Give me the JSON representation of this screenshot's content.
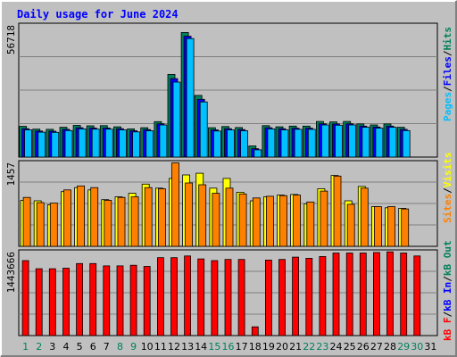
{
  "chart_data": {
    "type": "bar",
    "title": "Daily usage for June 2024",
    "categories": [
      "1",
      "2",
      "3",
      "4",
      "5",
      "6",
      "7",
      "8",
      "9",
      "10",
      "11",
      "12",
      "13",
      "14",
      "15",
      "16",
      "17",
      "18",
      "19",
      "20",
      "21",
      "22",
      "23",
      "24",
      "25",
      "26",
      "27",
      "28",
      "29",
      "30",
      "31"
    ],
    "weekend_days": [
      1,
      2,
      8,
      9,
      15,
      16,
      22,
      23,
      29,
      30
    ],
    "x_label_colors": {
      "weekday": "#000000",
      "weekend": "#00805c"
    },
    "background": "#c0c0c0",
    "panels": [
      {
        "name": "hits-files-pages",
        "y_max_label": "56718",
        "ylim": [
          0,
          56718
        ],
        "grid": true,
        "series": [
          {
            "name": "Hits",
            "color": "#00805c",
            "values": [
              13200,
              12000,
              11900,
              12800,
              13600,
              13400,
              13500,
              13000,
              12100,
              12600,
              15200,
              35500,
              53500,
              26500,
              12600,
              13100,
              12700,
              4800,
              13500,
              13000,
              13300,
              13300,
              15300,
              15100,
              15300,
              14200,
              13800,
              14200,
              12800,
              0,
              0
            ]
          },
          {
            "name": "Files",
            "color": "#0000ff",
            "values": [
              12200,
              11200,
              11100,
              11900,
              12600,
              12500,
              12500,
              12200,
              11300,
              11800,
              14300,
              33700,
              51900,
              24800,
              11700,
              12200,
              11800,
              3600,
              12600,
              12200,
              12400,
              12400,
              14300,
              14200,
              14300,
              13300,
              12900,
              13300,
              11900,
              0,
              0
            ]
          },
          {
            "name": "Pages",
            "color": "#00c0ff",
            "values": [
              11700,
              10700,
              10600,
              11400,
              12100,
              12000,
              12000,
              11700,
              10800,
              11300,
              13800,
              32200,
              50900,
              23700,
              11200,
              11700,
              11300,
              3100,
              12100,
              11700,
              11900,
              11900,
              13800,
              13700,
              13800,
              12800,
              12400,
              12800,
              11400,
              0,
              0
            ]
          }
        ]
      },
      {
        "name": "visits-sites",
        "y_max_label": "1457",
        "ylim": [
          0,
          1457
        ],
        "grid": true,
        "series": [
          {
            "name": "Visits",
            "color": "#ffff00",
            "values": [
              800,
              790,
              720,
              950,
              1020,
              980,
              810,
              860,
              920,
              1080,
              1010,
              1180,
              1240,
              1270,
              1010,
              1180,
              940,
              790,
              860,
              890,
              900,
              740,
              1000,
              1230,
              790,
              1040,
              690,
              670,
              660,
              0,
              0
            ]
          },
          {
            "name": "Sites",
            "color": "#ff8000",
            "values": [
              850,
              760,
              750,
              980,
              1050,
              1020,
              800,
              850,
              860,
              1020,
              1000,
              1450,
              1100,
              1070,
              920,
              1010,
              910,
              840,
              870,
              880,
              890,
              770,
              960,
              1220,
              730,
              1010,
              690,
              690,
              650,
              0,
              0
            ]
          }
        ]
      },
      {
        "name": "kbytes",
        "y_max_label": "1443666",
        "ylim": [
          0,
          1443666
        ],
        "grid": true,
        "series": [
          {
            "name": "kB F",
            "color": "#ff0000",
            "values": [
              1290000,
              1150000,
              1150000,
              1160000,
              1240000,
              1240000,
              1200000,
              1200000,
              1210000,
              1190000,
              1340000,
              1340000,
              1370000,
              1320000,
              1290000,
              1310000,
              1310000,
              150000,
              1300000,
              1310000,
              1350000,
              1330000,
              1360000,
              1420000,
              1420000,
              1420000,
              1430000,
              1440000,
              1420000,
              1370000,
              0
            ]
          }
        ]
      }
    ],
    "legend_right": [
      {
        "text": "Pages",
        "color": "#00c0ff"
      },
      {
        "text": "/",
        "color": "#000000"
      },
      {
        "text": "Files",
        "color": "#0000ff"
      },
      {
        "text": "/",
        "color": "#000000"
      },
      {
        "text": "Hits",
        "color": "#00805c"
      },
      {
        "text": "Sites",
        "color": "#ff8000"
      },
      {
        "text": "/",
        "color": "#000000"
      },
      {
        "text": "Visits",
        "color": "#ffff00"
      },
      {
        "text": "kB F",
        "color": "#ff0000"
      },
      {
        "text": "/",
        "color": "#000000"
      },
      {
        "text": "kB In",
        "color": "#0000ff"
      },
      {
        "text": "/",
        "color": "#000000"
      },
      {
        "text": "kB Out",
        "color": "#00805c"
      }
    ]
  }
}
